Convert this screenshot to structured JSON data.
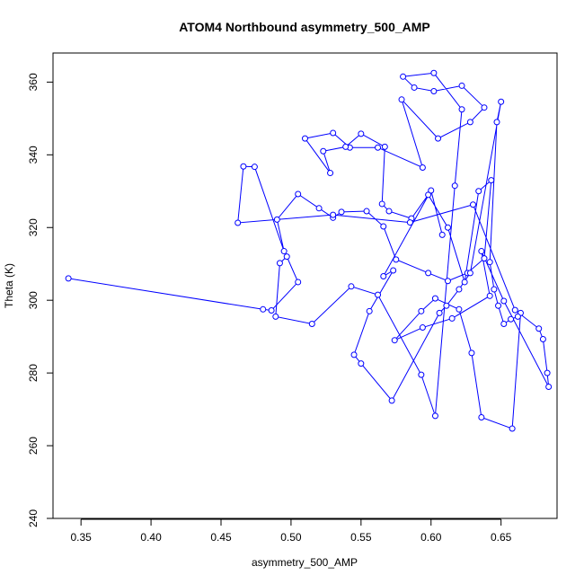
{
  "chart_data": {
    "type": "scatter",
    "title": "ATOM4 Northbound asymmetry_500_AMP",
    "xlabel": "asymmetry_500_AMP",
    "ylabel": "Theta (K)",
    "xlim": [
      0.33,
      0.69
    ],
    "ylim": [
      240,
      368
    ],
    "x_ticks": [
      0.35,
      0.4,
      0.45,
      0.5,
      0.55,
      0.6,
      0.65
    ],
    "y_ticks": [
      240,
      260,
      280,
      300,
      320,
      340,
      360
    ],
    "grid": false,
    "legend": "none",
    "color": "#0000ff",
    "series": [
      {
        "x": [
          0.341,
          0.48,
          0.486,
          0.505,
          0.497,
          0.492,
          0.489,
          0.515,
          0.543,
          0.562,
          0.593,
          0.603,
          0.617,
          0.622,
          0.602,
          0.58,
          0.588,
          0.602,
          0.622,
          0.638,
          0.628,
          0.605,
          0.579,
          0.594,
          0.562,
          0.542,
          0.53,
          0.51,
          0.528,
          0.523,
          0.539,
          0.55,
          0.567,
          0.565,
          0.57,
          0.586,
          0.598,
          0.612,
          0.624,
          0.634,
          0.643,
          0.638,
          0.626,
          0.612,
          0.598,
          0.575,
          0.566,
          0.554,
          0.536,
          0.53,
          0.52,
          0.505,
          0.49,
          0.495,
          0.474,
          0.466,
          0.462,
          0.53,
          0.585,
          0.63,
          0.66,
          0.677,
          0.68,
          0.683,
          0.684,
          0.652,
          0.636,
          0.642,
          0.615,
          0.594,
          0.574,
          0.593,
          0.603,
          0.62,
          0.629,
          0.636,
          0.658,
          0.664,
          0.662,
          0.657,
          0.652,
          0.648,
          0.645,
          0.642,
          0.647,
          0.65,
          0.628,
          0.62,
          0.611,
          0.606,
          0.572,
          0.55,
          0.545,
          0.556,
          0.573,
          0.566,
          0.6,
          0.608
        ],
        "y": [
          306,
          297.5,
          297.2,
          305,
          312,
          310.2,
          295.5,
          293.5,
          303.8,
          301.5,
          279.5,
          268.2,
          331.5,
          352.5,
          362.5,
          361.5,
          358.5,
          357.5,
          359,
          353,
          349,
          344.5,
          355.2,
          336.5,
          342,
          342,
          346,
          344.5,
          335,
          341,
          342.2,
          345.8,
          342.2,
          326.5,
          324.5,
          322.5,
          329,
          320,
          305,
          330,
          333,
          311.5,
          307.5,
          305.3,
          307.5,
          311.2,
          320.3,
          324.5,
          324.3,
          322.7,
          325.3,
          329.2,
          322.2,
          313.5,
          336.7,
          336.8,
          321.3,
          323.5,
          321.4,
          326.3,
          297.3,
          292.2,
          289.3,
          280,
          276.2,
          299.8,
          313.5,
          301.2,
          295,
          292.5,
          289,
          297,
          300.5,
          297.5,
          285.5,
          267.8,
          264.7,
          296.5,
          295.5,
          294.8,
          293.5,
          298.5,
          303,
          310.5,
          349,
          354.6,
          307.5,
          303,
          298.5,
          296.5,
          272.4,
          282.6,
          285,
          297,
          308.2,
          306.6,
          330.2,
          318
        ]
      }
    ]
  }
}
